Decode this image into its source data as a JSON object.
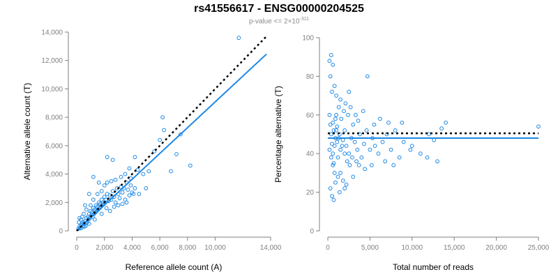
{
  "title": "rs41556617 - ENSG00000204525",
  "subtitle": {
    "prefix": "p-value <= 2×10",
    "exponent": "-311"
  },
  "colors": {
    "points": "#1e88e5",
    "fit_line": "#1e88e5",
    "reference_line": "#000000",
    "axis": "#7f7f7f",
    "tick_text": "#7f7f7f"
  },
  "chart_data": [
    {
      "type": "scatter",
      "xlabel": "Reference allele count (A)",
      "ylabel": "Alternative allele count (T)",
      "xlim": [
        0,
        14000
      ],
      "ylim": [
        0,
        14000
      ],
      "xticks": [
        0,
        2000,
        4000,
        6000,
        8000,
        10000,
        14000
      ],
      "xtick_labels": [
        "0",
        "2,000",
        "4,000",
        "6,000",
        "8,000",
        "10,000",
        "14,000"
      ],
      "yticks": [
        0,
        2000,
        4000,
        6000,
        8000,
        10000,
        12000,
        14000
      ],
      "ytick_labels": [
        "0",
        "2,000",
        "4,000",
        "6,000",
        "8,000",
        "10,000",
        "12,000",
        "14,000"
      ],
      "grid": false,
      "points": [
        [
          120,
          150
        ],
        [
          200,
          300
        ],
        [
          250,
          180
        ],
        [
          300,
          400
        ],
        [
          350,
          220
        ],
        [
          400,
          500
        ],
        [
          450,
          350
        ],
        [
          500,
          600
        ],
        [
          550,
          300
        ],
        [
          600,
          700
        ],
        [
          650,
          550
        ],
        [
          700,
          900
        ],
        [
          750,
          600
        ],
        [
          800,
          1000
        ],
        [
          850,
          800
        ],
        [
          900,
          1200
        ],
        [
          950,
          900
        ],
        [
          1000,
          1400
        ],
        [
          1050,
          1100
        ],
        [
          1100,
          1300
        ],
        [
          1150,
          1000
        ],
        [
          1200,
          1600
        ],
        [
          1250,
          1200
        ],
        [
          1300,
          1500
        ],
        [
          1350,
          1300
        ],
        [
          1400,
          1800
        ],
        [
          1450,
          1400
        ],
        [
          1500,
          1700
        ],
        [
          1550,
          1500
        ],
        [
          1600,
          2000
        ],
        [
          1650,
          1600
        ],
        [
          1700,
          1900
        ],
        [
          1750,
          1700
        ],
        [
          1800,
          2200
        ],
        [
          1850,
          1800
        ],
        [
          1900,
          2000
        ],
        [
          1950,
          1900
        ],
        [
          2000,
          2400
        ],
        [
          2050,
          2000
        ],
        [
          2100,
          2200
        ],
        [
          2150,
          1600
        ],
        [
          2200,
          2600
        ],
        [
          2300,
          2100
        ],
        [
          2400,
          2500
        ],
        [
          2500,
          2200
        ],
        [
          2600,
          2800
        ],
        [
          2700,
          2400
        ],
        [
          2800,
          2000
        ],
        [
          2900,
          3000
        ],
        [
          3000,
          2600
        ],
        [
          3100,
          2300
        ],
        [
          3200,
          3100
        ],
        [
          3300,
          2700
        ],
        [
          3400,
          3000
        ],
        [
          3500,
          2200
        ],
        [
          3600,
          3400
        ],
        [
          3700,
          2900
        ],
        [
          3800,
          2500
        ],
        [
          3900,
          3200
        ],
        [
          4000,
          2700
        ],
        [
          4100,
          2600
        ],
        [
          4200,
          3000
        ],
        [
          300,
          800
        ],
        [
          500,
          1200
        ],
        [
          700,
          1500
        ],
        [
          1000,
          1800
        ],
        [
          1200,
          2200
        ],
        [
          1500,
          2600
        ],
        [
          1800,
          2800
        ],
        [
          2000,
          3200
        ],
        [
          2200,
          3400
        ],
        [
          2500,
          3500
        ],
        [
          2800,
          3600
        ],
        [
          3200,
          3800
        ],
        [
          3500,
          4000
        ],
        [
          3800,
          4400
        ],
        [
          4200,
          5200
        ],
        [
          4800,
          4000
        ],
        [
          5200,
          4200
        ],
        [
          5600,
          5600
        ],
        [
          6000,
          6400
        ],
        [
          6300,
          7100
        ],
        [
          6800,
          4200
        ],
        [
          7200,
          5400
        ],
        [
          7500,
          6800
        ],
        [
          8200,
          4600
        ],
        [
          6200,
          8000
        ],
        [
          11700,
          13600
        ],
        [
          1200,
          3800
        ],
        [
          2200,
          5200
        ],
        [
          2600,
          5000
        ],
        [
          1600,
          3400
        ],
        [
          900,
          2600
        ],
        [
          600,
          1800
        ],
        [
          400,
          1000
        ],
        [
          150,
          600
        ],
        [
          200,
          900
        ],
        [
          2400,
          1400
        ],
        [
          3000,
          1800
        ],
        [
          1800,
          1200
        ],
        [
          1300,
          800
        ],
        [
          900,
          500
        ],
        [
          650,
          350
        ],
        [
          2700,
          1700
        ],
        [
          3300,
          1900
        ],
        [
          4500,
          2600
        ],
        [
          5000,
          3000
        ],
        [
          3600,
          2000
        ],
        [
          3900,
          3700
        ],
        [
          4400,
          4300
        ]
      ],
      "series": [
        {
          "name": "",
          "style": "solid",
          "line": [
            [
              0,
              0
            ],
            [
              13700,
              12450
            ]
          ]
        },
        {
          "name": "",
          "style": "dotted",
          "line": [
            [
              0,
              0
            ],
            [
              13700,
              13700
            ]
          ]
        }
      ]
    },
    {
      "type": "scatter",
      "xlabel": "Total number of reads",
      "ylabel": "Percentage alternative (T)",
      "xlim": [
        0,
        25000
      ],
      "ylim": [
        0,
        100
      ],
      "xticks": [
        0,
        5000,
        10000,
        15000,
        20000,
        25000
      ],
      "xtick_labels": [
        "0",
        "5,000",
        "10,000",
        "15,000",
        "20,000",
        "25,000"
      ],
      "yticks": [
        0,
        20,
        40,
        60,
        80,
        100
      ],
      "ytick_labels": [
        "0",
        "20",
        "40",
        "60",
        "80",
        "100"
      ],
      "grid": false,
      "points": [
        [
          200,
          88
        ],
        [
          400,
          91
        ],
        [
          600,
          86
        ],
        [
          300,
          80
        ],
        [
          800,
          75
        ],
        [
          500,
          72
        ],
        [
          1000,
          70
        ],
        [
          1500,
          68
        ],
        [
          2500,
          72
        ],
        [
          4700,
          80
        ],
        [
          200,
          60
        ],
        [
          300,
          55
        ],
        [
          400,
          50
        ],
        [
          500,
          45
        ],
        [
          600,
          40
        ],
        [
          700,
          35
        ],
        [
          800,
          30
        ],
        [
          900,
          25
        ],
        [
          300,
          22
        ],
        [
          500,
          18
        ],
        [
          700,
          16
        ],
        [
          1200,
          38
        ],
        [
          1500,
          42
        ],
        [
          1800,
          47
        ],
        [
          2000,
          52
        ],
        [
          2200,
          44
        ],
        [
          2500,
          40
        ],
        [
          2800,
          48
        ],
        [
          3000,
          55
        ],
        [
          3200,
          46
        ],
        [
          3500,
          42
        ],
        [
          3800,
          50
        ],
        [
          4000,
          38
        ],
        [
          4300,
          45
        ],
        [
          4600,
          52
        ],
        [
          5000,
          42
        ],
        [
          5300,
          48
        ],
        [
          5600,
          44
        ],
        [
          6000,
          40
        ],
        [
          6500,
          46
        ],
        [
          7000,
          50
        ],
        [
          7500,
          42
        ],
        [
          8000,
          52
        ],
        [
          8500,
          38
        ],
        [
          9000,
          46
        ],
        [
          10000,
          44
        ],
        [
          11000,
          40
        ],
        [
          12000,
          50
        ],
        [
          13000,
          36
        ],
        [
          13500,
          53
        ],
        [
          14000,
          56
        ],
        [
          25000,
          54
        ],
        [
          1000,
          60
        ],
        [
          1300,
          64
        ],
        [
          1600,
          58
        ],
        [
          1900,
          62
        ],
        [
          2100,
          66
        ],
        [
          2400,
          60
        ],
        [
          2700,
          64
        ],
        [
          3300,
          60
        ],
        [
          3600,
          57
        ],
        [
          4200,
          62
        ],
        [
          5500,
          55
        ],
        [
          6200,
          58
        ],
        [
          7200,
          56
        ],
        [
          8800,
          56
        ],
        [
          600,
          56
        ],
        [
          700,
          52
        ],
        [
          900,
          48
        ],
        [
          1100,
          46
        ],
        [
          1400,
          50
        ],
        [
          1700,
          44
        ],
        [
          2000,
          40
        ],
        [
          2300,
          36
        ],
        [
          2600,
          34
        ],
        [
          2900,
          38
        ],
        [
          3400,
          36
        ],
        [
          3700,
          34
        ],
        [
          4400,
          32
        ],
        [
          5200,
          34
        ],
        [
          6800,
          36
        ],
        [
          7800,
          34
        ],
        [
          9800,
          42
        ],
        [
          11800,
          38
        ],
        [
          12600,
          47
        ],
        [
          200,
          42
        ],
        [
          400,
          38
        ],
        [
          600,
          34
        ],
        [
          800,
          44
        ],
        [
          1000,
          52
        ],
        [
          1200,
          28
        ],
        [
          1500,
          30
        ],
        [
          1800,
          26
        ],
        [
          2200,
          24
        ],
        [
          3000,
          28
        ],
        [
          1400,
          20
        ],
        [
          2000,
          22
        ],
        [
          900,
          58
        ],
        [
          1100,
          54
        ],
        [
          1300,
          48
        ]
      ],
      "series": [
        {
          "name": "",
          "style": "solid",
          "line": [
            [
              0,
              48
            ],
            [
              25000,
              48
            ]
          ]
        },
        {
          "name": "",
          "style": "dotted",
          "line": [
            [
              0,
              50.5
            ],
            [
              25000,
              50.5
            ]
          ]
        }
      ]
    }
  ]
}
